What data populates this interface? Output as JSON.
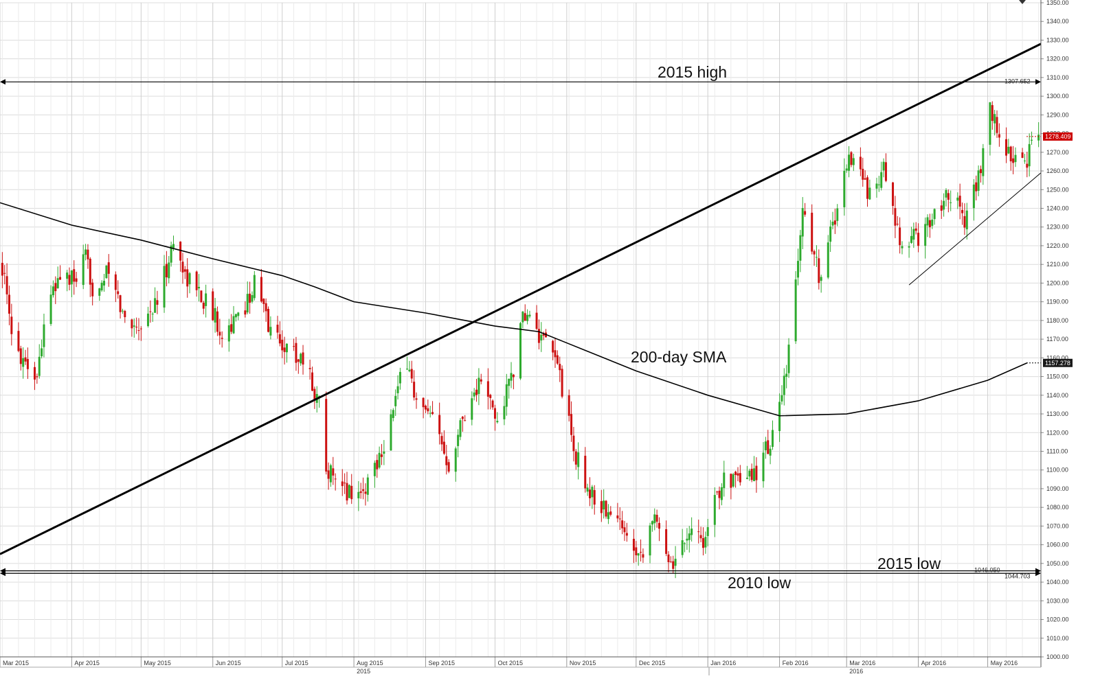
{
  "chart_data": {
    "type": "candlestick",
    "ylim": [
      1000,
      1350
    ],
    "y_ticks": [
      1000,
      1010,
      1020,
      1030,
      1040,
      1050,
      1060,
      1070,
      1080,
      1090,
      1100,
      1110,
      1120,
      1130,
      1140,
      1150,
      1160,
      1170,
      1180,
      1190,
      1200,
      1210,
      1220,
      1230,
      1240,
      1250,
      1260,
      1270,
      1280,
      1290,
      1300,
      1310,
      1320,
      1330,
      1340,
      1350
    ],
    "y_tick_labels": [
      "1000.00",
      "1010.00",
      "1020.00",
      "1030.00",
      "1040.00",
      "1050.00",
      "1060.00",
      "1070.00",
      "1080.00",
      "1090.00",
      "1100.00",
      "1110.00",
      "1120.00",
      "1130.00",
      "1140.00",
      "1150.00",
      "1160.00",
      "1170.00",
      "1180.00",
      "1190.00",
      "1200.00",
      "1210.00",
      "1220.00",
      "1230.00",
      "1240.00",
      "1250.00",
      "1260.00",
      "1270.00",
      "1280.00",
      "1290.00",
      "1300.00",
      "1310.00",
      "1320.00",
      "1330.00",
      "1340.00",
      "1350.00"
    ],
    "x_range": [
      "2015-03-01",
      "2016-05-24"
    ],
    "months": [
      {
        "date": "2015-03-01",
        "label": "Mar 2015"
      },
      {
        "date": "2015-04-01",
        "label": "Apr 2015"
      },
      {
        "date": "2015-05-01",
        "label": "May 2015"
      },
      {
        "date": "2015-06-01",
        "label": "Jun 2015"
      },
      {
        "date": "2015-07-01",
        "label": "Jul 2015"
      },
      {
        "date": "2015-08-01",
        "label": "Aug 2015"
      },
      {
        "date": "2015-09-01",
        "label": "Sep 2015"
      },
      {
        "date": "2015-10-01",
        "label": "Oct 2015"
      },
      {
        "date": "2015-11-01",
        "label": "Nov 2015"
      },
      {
        "date": "2015-12-01",
        "label": "Dec 2015"
      },
      {
        "date": "2016-01-01",
        "label": "Jan 2016"
      },
      {
        "date": "2016-02-01",
        "label": "Feb 2016"
      },
      {
        "date": "2016-03-01",
        "label": "Mar 2016"
      },
      {
        "date": "2016-04-01",
        "label": "Apr 2016"
      },
      {
        "date": "2016-05-01",
        "label": "May 2016"
      }
    ],
    "years": [
      {
        "date": "2015-08-01",
        "label": "2015"
      },
      {
        "date": "2016-03-01",
        "label": "2016"
      }
    ],
    "price_path": [
      [
        "2015-03-02",
        1210
      ],
      [
        "2015-03-06",
        1170
      ],
      [
        "2015-03-17",
        1150
      ],
      [
        "2015-03-20",
        1180
      ],
      [
        "2015-03-27",
        1205
      ],
      [
        "2015-04-02",
        1200
      ],
      [
        "2015-04-07",
        1212
      ],
      [
        "2015-04-10",
        1198
      ],
      [
        "2015-04-17",
        1205
      ],
      [
        "2015-04-24",
        1180
      ],
      [
        "2015-05-01",
        1178
      ],
      [
        "2015-05-08",
        1190
      ],
      [
        "2015-05-15",
        1222
      ],
      [
        "2015-05-20",
        1205
      ],
      [
        "2015-05-29",
        1190
      ],
      [
        "2015-06-05",
        1175
      ],
      [
        "2015-06-12",
        1180
      ],
      [
        "2015-06-19",
        1200
      ],
      [
        "2015-06-26",
        1175
      ],
      [
        "2015-07-03",
        1165
      ],
      [
        "2015-07-10",
        1160
      ],
      [
        "2015-07-17",
        1135
      ],
      [
        "2015-07-20",
        1105
      ],
      [
        "2015-07-24",
        1090
      ],
      [
        "2015-08-05",
        1088
      ],
      [
        "2015-08-14",
        1115
      ],
      [
        "2015-08-24",
        1160
      ],
      [
        "2015-08-28",
        1135
      ],
      [
        "2015-09-04",
        1125
      ],
      [
        "2015-09-11",
        1105
      ],
      [
        "2015-09-18",
        1132
      ],
      [
        "2015-09-25",
        1148
      ],
      [
        "2015-10-02",
        1125
      ],
      [
        "2015-10-09",
        1155
      ],
      [
        "2015-10-14",
        1185
      ],
      [
        "2015-10-21",
        1168
      ],
      [
        "2015-10-28",
        1158
      ],
      [
        "2015-11-04",
        1110
      ],
      [
        "2015-11-11",
        1088
      ],
      [
        "2015-11-20",
        1075
      ],
      [
        "2015-11-27",
        1068
      ],
      [
        "2015-12-03",
        1055
      ],
      [
        "2015-12-08",
        1075
      ],
      [
        "2015-12-17",
        1050
      ],
      [
        "2015-12-24",
        1070
      ],
      [
        "2015-12-31",
        1062
      ],
      [
        "2016-01-08",
        1100
      ],
      [
        "2016-01-15",
        1090
      ],
      [
        "2016-01-22",
        1100
      ],
      [
        "2016-01-29",
        1118
      ],
      [
        "2016-02-04",
        1150
      ],
      [
        "2016-02-11",
        1240
      ],
      [
        "2016-02-18",
        1205
      ],
      [
        "2016-02-25",
        1235
      ],
      [
        "2016-03-02",
        1270
      ],
      [
        "2016-03-10",
        1250
      ],
      [
        "2016-03-17",
        1260
      ],
      [
        "2016-03-24",
        1220
      ],
      [
        "2016-04-01",
        1225
      ],
      [
        "2016-04-07",
        1235
      ],
      [
        "2016-04-14",
        1250
      ],
      [
        "2016-04-21",
        1235
      ],
      [
        "2016-04-28",
        1260
      ],
      [
        "2016-05-02",
        1292
      ],
      [
        "2016-05-09",
        1270
      ],
      [
        "2016-05-16",
        1262
      ],
      [
        "2016-05-23",
        1278
      ]
    ],
    "sma_200": [
      [
        "2015-03-01",
        1243
      ],
      [
        "2015-04-01",
        1231
      ],
      [
        "2015-05-01",
        1223
      ],
      [
        "2015-06-01",
        1213
      ],
      [
        "2015-07-01",
        1204
      ],
      [
        "2015-07-15",
        1198
      ],
      [
        "2015-08-01",
        1190
      ],
      [
        "2015-09-01",
        1184
      ],
      [
        "2015-10-01",
        1177
      ],
      [
        "2015-10-20",
        1174
      ],
      [
        "2015-11-01",
        1168
      ],
      [
        "2015-12-01",
        1153
      ],
      [
        "2016-01-01",
        1140
      ],
      [
        "2016-02-01",
        1129
      ],
      [
        "2016-03-01",
        1130
      ],
      [
        "2016-04-01",
        1137
      ],
      [
        "2016-05-01",
        1148
      ],
      [
        "2016-05-18",
        1157.278
      ]
    ],
    "trendlines": [
      {
        "from": [
          "2015-03-01",
          1055
        ],
        "to": [
          "2016-05-24",
          1328
        ],
        "style": "thick"
      },
      {
        "from": [
          "2016-03-28",
          1199
        ],
        "to": [
          "2016-05-24",
          1259
        ],
        "style": "thin"
      }
    ],
    "levels": [
      {
        "value": 1307.652,
        "label": "1307.652",
        "style": "arrow"
      },
      {
        "value": 1046.05,
        "label": "1046.050",
        "style": "arrow"
      },
      {
        "value": 1044.703,
        "label": "1044.703",
        "style": "arrow"
      }
    ],
    "last_price": {
      "value": 1278.409,
      "label": "1278.409",
      "color": "#cc0000"
    },
    "sma_label": {
      "value": 1157.278,
      "label": "1157.278"
    },
    "annotations": {
      "high_2015": "2015 high",
      "sma": "200-day SMA",
      "low_2015": "2015 low",
      "low_2010": "2010 low"
    },
    "colors": {
      "up": "#2eaa2e",
      "down": "#cc1111",
      "line": "#000000",
      "grid": "#dcdcdc"
    },
    "grid": true
  }
}
